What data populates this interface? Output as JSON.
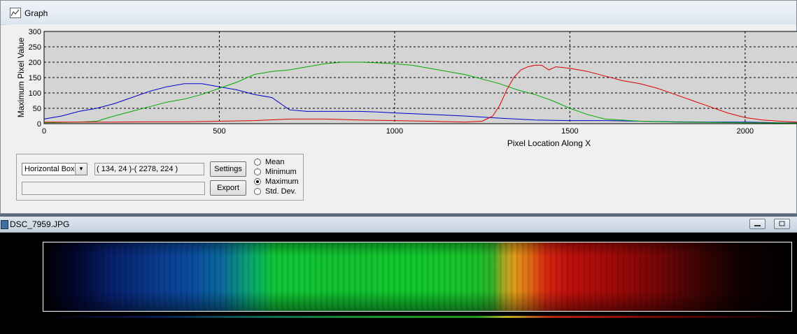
{
  "graph_window": {
    "title": "Graph",
    "icon": "graph-icon"
  },
  "chart_data": {
    "type": "line",
    "xlabel": "Pixel Location Along X",
    "ylabel": "Maximum Pixel Value",
    "xlim": [
      0,
      2150
    ],
    "ylim": [
      0,
      300
    ],
    "x_ticks": [
      0,
      500,
      1000,
      1500,
      2000
    ],
    "y_ticks": [
      0,
      50,
      100,
      150,
      200,
      250,
      300
    ],
    "grid": true,
    "series": [
      {
        "color": "#0000cc",
        "x": [
          0,
          50,
          100,
          150,
          200,
          250,
          300,
          350,
          400,
          450,
          500,
          550,
          600,
          650,
          700,
          750,
          800,
          850,
          900,
          950,
          1000,
          1100,
          1200,
          1300,
          1400,
          1500,
          1600,
          1700,
          1800,
          1900,
          2000,
          2100,
          2150
        ],
        "y": [
          15,
          25,
          40,
          50,
          65,
          85,
          105,
          120,
          130,
          130,
          120,
          110,
          95,
          85,
          45,
          40,
          40,
          40,
          40,
          38,
          35,
          30,
          25,
          18,
          12,
          10,
          10,
          8,
          6,
          5,
          5,
          3,
          3
        ]
      },
      {
        "color": "#00aa00",
        "x": [
          0,
          100,
          150,
          200,
          250,
          300,
          350,
          400,
          450,
          500,
          550,
          600,
          650,
          700,
          750,
          800,
          850,
          900,
          950,
          1000,
          1050,
          1100,
          1150,
          1200,
          1250,
          1300,
          1350,
          1400,
          1450,
          1500,
          1550,
          1600,
          1700,
          1800,
          2000,
          2150
        ],
        "y": [
          3,
          5,
          8,
          25,
          40,
          55,
          70,
          80,
          95,
          115,
          135,
          160,
          170,
          175,
          185,
          195,
          200,
          200,
          198,
          195,
          190,
          180,
          170,
          160,
          145,
          130,
          110,
          95,
          75,
          50,
          30,
          15,
          8,
          5,
          3,
          2
        ]
      },
      {
        "color": "#dd0000",
        "x": [
          0,
          100,
          200,
          300,
          400,
          500,
          600,
          700,
          800,
          900,
          1000,
          1100,
          1200,
          1250,
          1280,
          1300,
          1320,
          1340,
          1360,
          1380,
          1400,
          1420,
          1440,
          1460,
          1500,
          1550,
          1600,
          1650,
          1700,
          1750,
          1800,
          1850,
          1900,
          1950,
          2000,
          2050,
          2100,
          2150
        ],
        "y": [
          5,
          5,
          5,
          6,
          6,
          8,
          10,
          15,
          15,
          12,
          10,
          8,
          5,
          8,
          25,
          60,
          110,
          150,
          175,
          185,
          190,
          190,
          175,
          185,
          180,
          170,
          155,
          140,
          130,
          115,
          95,
          75,
          55,
          35,
          20,
          12,
          8,
          5
        ]
      }
    ]
  },
  "controls": {
    "mode_select": {
      "value": "Horizontal Box"
    },
    "coords": "( 134, 24 )-( 2278, 224 )",
    "blank_field": "",
    "settings_label": "Settings",
    "export_label": "Export",
    "radio_options": [
      {
        "label": "Mean",
        "selected": false
      },
      {
        "label": "Minimum",
        "selected": false
      },
      {
        "label": "Maximum",
        "selected": true
      },
      {
        "label": "Std. Dev.",
        "selected": false
      }
    ]
  },
  "image_window": {
    "title": "DSC_7959.JPG",
    "icon": "image-file-icon",
    "minimize_label": "▭",
    "restore_label": "⧉"
  }
}
